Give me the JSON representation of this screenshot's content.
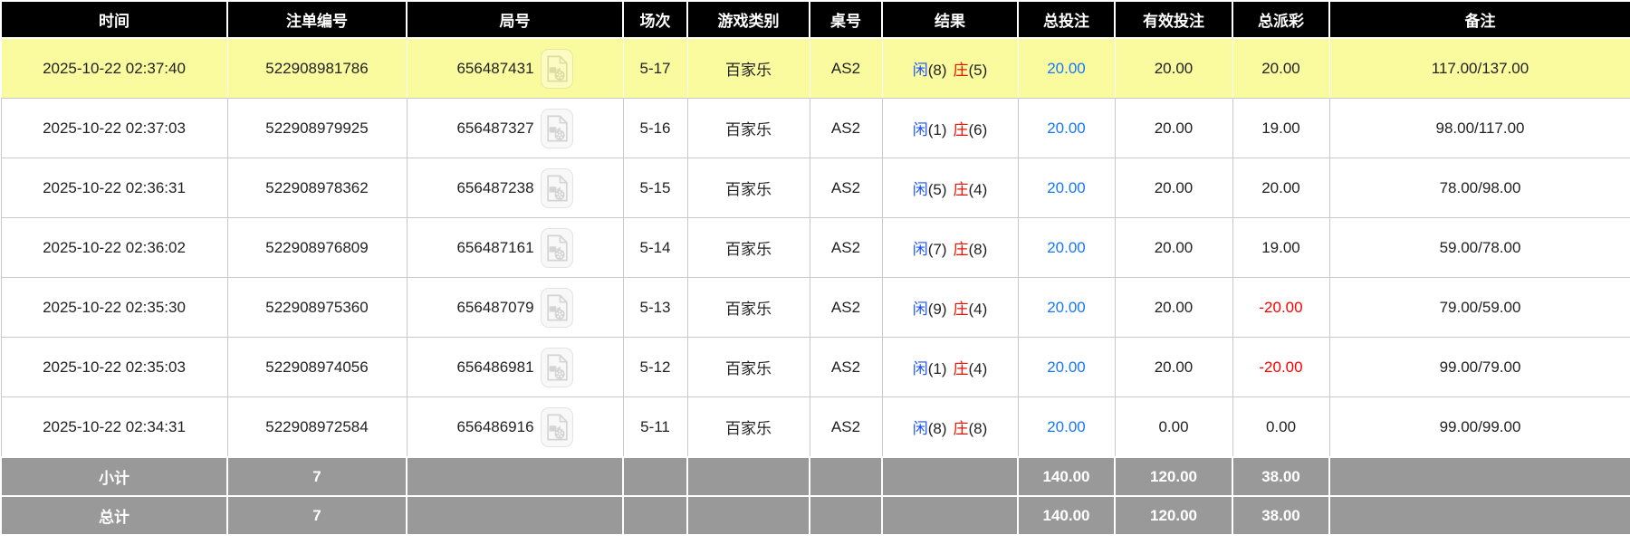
{
  "colors": {
    "header_bg": "#000000",
    "highlight_bg": "#fafa9e",
    "footer_bg": "#999999",
    "bet_blue": "#1677ff",
    "player_blue": "#1a52ff",
    "banker_red": "#ee1100",
    "negative_red": "#ff0000",
    "grid_gray": "#c9c9c9",
    "body_text": "#222222"
  },
  "icons": {
    "round_replay": "video-file-icon"
  },
  "table": {
    "columns": [
      {
        "key": "time",
        "label": "时间"
      },
      {
        "key": "bet_id",
        "label": "注单编号"
      },
      {
        "key": "round_id",
        "label": "局号"
      },
      {
        "key": "session",
        "label": "场次"
      },
      {
        "key": "game_type",
        "label": "游戏类别"
      },
      {
        "key": "table_no",
        "label": "桌号"
      },
      {
        "key": "result",
        "label": "结果"
      },
      {
        "key": "total_bet",
        "label": "总投注"
      },
      {
        "key": "valid_bet",
        "label": "有效投注"
      },
      {
        "key": "total_payout",
        "label": "总派彩"
      },
      {
        "key": "remark",
        "label": "备注"
      }
    ],
    "rows": [
      {
        "time": "2025-10-22 02:37:40",
        "bet_id": "522908981786",
        "round_id": "656487431",
        "session": "5-17",
        "game_type": "百家乐",
        "table_no": "AS2",
        "result": {
          "player_label": "闲",
          "player_score": "(8)",
          "banker_label": "庄",
          "banker_score": "(5)"
        },
        "total_bet": "20.00",
        "valid_bet": "20.00",
        "total_payout": "20.00",
        "remark": "117.00/137.00",
        "highlighted": true
      },
      {
        "time": "2025-10-22 02:37:03",
        "bet_id": "522908979925",
        "round_id": "656487327",
        "session": "5-16",
        "game_type": "百家乐",
        "table_no": "AS2",
        "result": {
          "player_label": "闲",
          "player_score": "(1)",
          "banker_label": "庄",
          "banker_score": "(6)"
        },
        "total_bet": "20.00",
        "valid_bet": "20.00",
        "total_payout": "19.00",
        "remark": "98.00/117.00",
        "highlighted": false
      },
      {
        "time": "2025-10-22 02:36:31",
        "bet_id": "522908978362",
        "round_id": "656487238",
        "session": "5-15",
        "game_type": "百家乐",
        "table_no": "AS2",
        "result": {
          "player_label": "闲",
          "player_score": "(5)",
          "banker_label": "庄",
          "banker_score": "(4)"
        },
        "total_bet": "20.00",
        "valid_bet": "20.00",
        "total_payout": "20.00",
        "remark": "78.00/98.00",
        "highlighted": false
      },
      {
        "time": "2025-10-22 02:36:02",
        "bet_id": "522908976809",
        "round_id": "656487161",
        "session": "5-14",
        "game_type": "百家乐",
        "table_no": "AS2",
        "result": {
          "player_label": "闲",
          "player_score": "(7)",
          "banker_label": "庄",
          "banker_score": "(8)"
        },
        "total_bet": "20.00",
        "valid_bet": "20.00",
        "total_payout": "19.00",
        "remark": "59.00/78.00",
        "highlighted": false
      },
      {
        "time": "2025-10-22 02:35:30",
        "bet_id": "522908975360",
        "round_id": "656487079",
        "session": "5-13",
        "game_type": "百家乐",
        "table_no": "AS2",
        "result": {
          "player_label": "闲",
          "player_score": "(9)",
          "banker_label": "庄",
          "banker_score": "(4)"
        },
        "total_bet": "20.00",
        "valid_bet": "20.00",
        "total_payout": "-20.00",
        "remark": "79.00/59.00",
        "highlighted": false
      },
      {
        "time": "2025-10-22 02:35:03",
        "bet_id": "522908974056",
        "round_id": "656486981",
        "session": "5-12",
        "game_type": "百家乐",
        "table_no": "AS2",
        "result": {
          "player_label": "闲",
          "player_score": "(1)",
          "banker_label": "庄",
          "banker_score": "(4)"
        },
        "total_bet": "20.00",
        "valid_bet": "20.00",
        "total_payout": "-20.00",
        "remark": "99.00/79.00",
        "highlighted": false
      },
      {
        "time": "2025-10-22 02:34:31",
        "bet_id": "522908972584",
        "round_id": "656486916",
        "session": "5-11",
        "game_type": "百家乐",
        "table_no": "AS2",
        "result": {
          "player_label": "闲",
          "player_score": "(8)",
          "banker_label": "庄",
          "banker_score": "(8)"
        },
        "total_bet": "20.00",
        "valid_bet": "0.00",
        "total_payout": "0.00",
        "remark": "99.00/99.00",
        "highlighted": false
      }
    ],
    "footer": [
      {
        "label": "小计",
        "count": "7",
        "total_bet": "140.00",
        "valid_bet": "120.00",
        "total_payout": "38.00"
      },
      {
        "label": "总计",
        "count": "7",
        "total_bet": "140.00",
        "valid_bet": "120.00",
        "total_payout": "38.00"
      }
    ]
  }
}
